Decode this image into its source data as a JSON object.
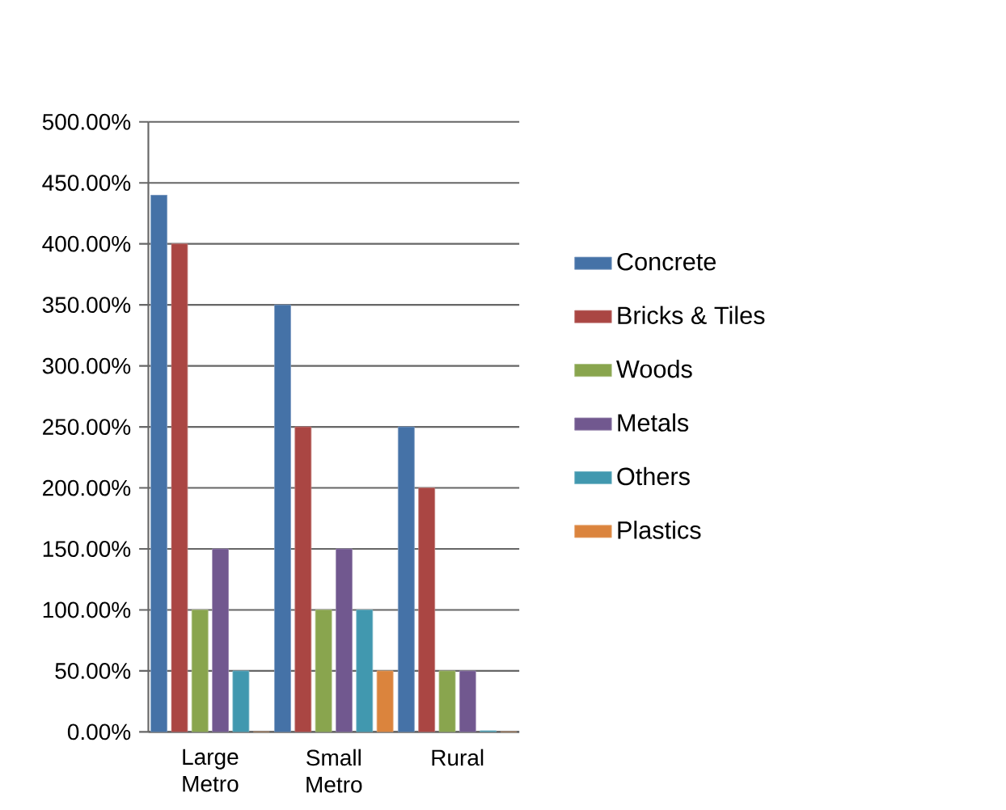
{
  "chart_data": {
    "type": "bar",
    "categories": [
      "Large Metro",
      "Small Metro",
      "Rural"
    ],
    "series": [
      {
        "name": "Concrete",
        "color": "#4572a7",
        "values": [
          440,
          350,
          250
        ]
      },
      {
        "name": "Bricks & Tiles",
        "color": "#aa4643",
        "values": [
          400,
          250,
          200
        ]
      },
      {
        "name": "Woods",
        "color": "#89a54e",
        "values": [
          100,
          100,
          50
        ]
      },
      {
        "name": "Metals",
        "color": "#71588f",
        "values": [
          150,
          150,
          50
        ]
      },
      {
        "name": "Others",
        "color": "#4198af",
        "values": [
          50,
          100,
          1
        ]
      },
      {
        "name": "Plastics",
        "color": "#db843d",
        "values": [
          0,
          50,
          0
        ]
      }
    ],
    "ylim": [
      0,
      500
    ],
    "yticks": [
      {
        "value": 0,
        "label": "0.00%"
      },
      {
        "value": 50,
        "label": "50.00%"
      },
      {
        "value": 100,
        "label": "100.00%"
      },
      {
        "value": 150,
        "label": "150.00%"
      },
      {
        "value": 200,
        "label": "200.00%"
      },
      {
        "value": 250,
        "label": "250.00%"
      },
      {
        "value": 300,
        "label": "300.00%"
      },
      {
        "value": 350,
        "label": "350.00%"
      },
      {
        "value": 400,
        "label": "400.00%"
      },
      {
        "value": 450,
        "label": "450.00%"
      },
      {
        "value": 500,
        "label": "500.00%"
      }
    ],
    "grid": "y",
    "legend": "right"
  }
}
